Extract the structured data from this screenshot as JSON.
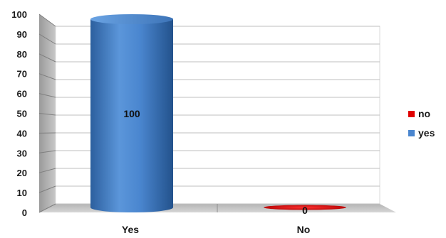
{
  "chart_data": {
    "type": "bar",
    "categories": [
      "Yes",
      "No"
    ],
    "series": [
      {
        "name": "yes",
        "values": [
          100,
          null
        ],
        "color": "#4a86cf"
      },
      {
        "name": "no",
        "values": [
          null,
          0
        ],
        "color": "#e00000"
      }
    ],
    "data_labels": [
      "100",
      "0"
    ],
    "ylim": [
      0,
      100
    ],
    "yticks": [
      0,
      10,
      20,
      30,
      40,
      50,
      60,
      70,
      80,
      90,
      100
    ],
    "grid": true,
    "legend_position": "right",
    "legend": [
      {
        "label": "no",
        "color": "#e00000"
      },
      {
        "label": "yes",
        "color": "#4a86cf"
      }
    ]
  }
}
